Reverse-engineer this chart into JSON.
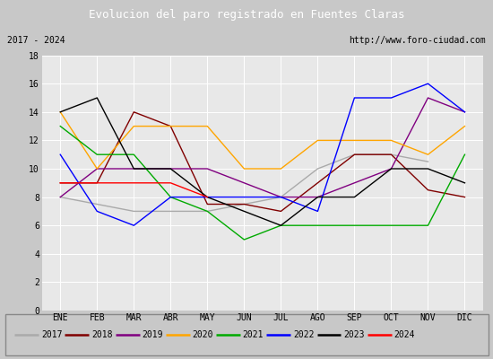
{
  "title": "Evolucion del paro registrado en Fuentes Claras",
  "subtitle_left": "2017 - 2024",
  "subtitle_right": "http://www.foro-ciudad.com",
  "months": [
    "ENE",
    "FEB",
    "MAR",
    "ABR",
    "MAY",
    "JUN",
    "JUL",
    "AGO",
    "SEP",
    "OCT",
    "NOV",
    "DIC"
  ],
  "ylim": [
    0,
    18
  ],
  "yticks": [
    0,
    2,
    4,
    6,
    8,
    10,
    12,
    14,
    16,
    18
  ],
  "series": {
    "2017": {
      "color": "#aaaaaa",
      "data": [
        8,
        7.5,
        7,
        7,
        7,
        7.5,
        8,
        10,
        11,
        11,
        10.5,
        null
      ]
    },
    "2018": {
      "color": "#800000",
      "data": [
        9,
        9,
        14,
        13,
        7.5,
        7.5,
        7,
        9,
        11,
        11,
        8.5,
        8
      ]
    },
    "2019": {
      "color": "#800080",
      "data": [
        8,
        10,
        10,
        10,
        10,
        9,
        8,
        8,
        9,
        10,
        15,
        14
      ]
    },
    "2020": {
      "color": "#ffa500",
      "data": [
        14,
        10,
        13,
        13,
        13,
        10,
        10,
        12,
        12,
        12,
        11,
        13
      ]
    },
    "2021": {
      "color": "#00aa00",
      "data": [
        13,
        11,
        11,
        8,
        7,
        5,
        6,
        6,
        6,
        6,
        6,
        11
      ]
    },
    "2022": {
      "color": "#0000ff",
      "data": [
        11,
        7,
        6,
        8,
        8,
        8,
        8,
        7,
        15,
        15,
        16,
        14
      ]
    },
    "2023": {
      "color": "#000000",
      "data": [
        14,
        15,
        10,
        10,
        8,
        7,
        6,
        8,
        8,
        10,
        10,
        9
      ]
    },
    "2024": {
      "color": "#ff0000",
      "data": [
        9,
        9,
        9,
        9,
        8,
        null,
        null,
        null,
        null,
        null,
        null,
        null
      ]
    }
  },
  "title_bg_color": "#4472c4",
  "title_text_color": "#ffffff",
  "subtitle_bg_color": "#e0e0e0",
  "plot_bg_color": "#e8e8e8",
  "fig_bg_color": "#c8c8c8",
  "legend_bg_color": "#f0f0f0",
  "title_fontsize": 9,
  "subtitle_fontsize": 7,
  "tick_fontsize": 7,
  "legend_fontsize": 7
}
